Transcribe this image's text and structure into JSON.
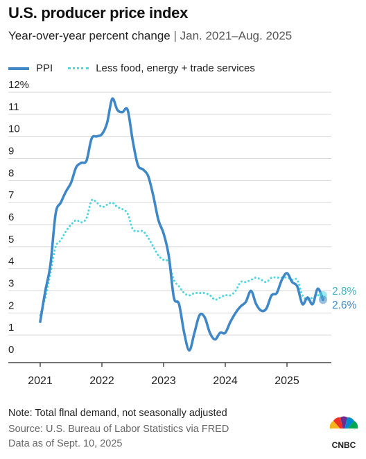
{
  "header": {
    "title": "U.S. producer price index",
    "subtitle_main": "Year-over-year percent change",
    "subtitle_sep": "|",
    "subtitle_range": "Jan. 2021–Aug. 2025"
  },
  "legend": {
    "ppi": "PPI",
    "core": "Less food, energy + trade services"
  },
  "footer": {
    "note": "Note: Total flnal demand, not seasonally adjusted",
    "source": "Source: U.S. Bureau of Labor Statistics via FRED",
    "asof": "Data as of Sept. 10, 2025"
  },
  "logo": {
    "text": "CNBC"
  },
  "colors": {
    "ppi": "#3f87c6",
    "core": "#4fd7de",
    "ppi_label": "#3f87c6",
    "core_label": "#3ab3bf"
  },
  "chart_data": {
    "type": "line",
    "ylim": [
      0,
      12
    ],
    "y_ticks": [
      "0",
      "1",
      "2",
      "3",
      "4",
      "5",
      "6",
      "7",
      "8",
      "9",
      "10",
      "11",
      "12%"
    ],
    "x_ticks": [
      "2021",
      "2022",
      "2023",
      "2024",
      "2025"
    ],
    "x_start": "2021-01",
    "end_labels": {
      "core": "2.8%",
      "ppi": "2.6%"
    },
    "series": [
      {
        "name": "PPI",
        "style": "solid",
        "values": [
          1.6,
          3.0,
          4.2,
          6.5,
          7.0,
          7.5,
          7.9,
          8.6,
          8.8,
          8.9,
          9.9,
          10.0,
          10.1,
          10.6,
          11.7,
          11.2,
          11.1,
          11.2,
          9.8,
          8.7,
          8.5,
          8.2,
          7.3,
          6.2,
          5.6,
          4.6,
          2.7,
          2.4,
          1.1,
          0.3,
          1.1,
          1.9,
          1.8,
          1.1,
          0.8,
          1.1,
          1.1,
          1.6,
          2.0,
          2.3,
          2.5,
          3.0,
          2.4,
          2.1,
          2.2,
          2.8,
          2.9,
          3.5,
          3.8,
          3.4,
          3.2,
          2.4,
          2.7,
          2.4,
          3.1,
          2.6
        ]
      },
      {
        "name": "Less food, energy + trade services",
        "style": "dotted",
        "values": [
          1.9,
          2.7,
          3.8,
          5.0,
          5.3,
          5.7,
          6.0,
          6.2,
          6.1,
          6.3,
          7.1,
          7.0,
          6.8,
          6.9,
          7.0,
          6.8,
          6.7,
          6.5,
          5.8,
          5.7,
          5.7,
          5.4,
          5.0,
          4.6,
          4.4,
          4.3,
          3.5,
          3.2,
          2.9,
          2.8,
          2.9,
          2.9,
          2.9,
          2.8,
          2.6,
          2.7,
          2.8,
          2.8,
          3.0,
          3.4,
          3.4,
          3.5,
          3.6,
          3.5,
          3.4,
          3.6,
          3.6,
          3.6,
          3.6,
          3.5,
          3.5,
          2.8,
          2.6,
          2.7,
          2.8,
          2.8
        ]
      }
    ]
  }
}
